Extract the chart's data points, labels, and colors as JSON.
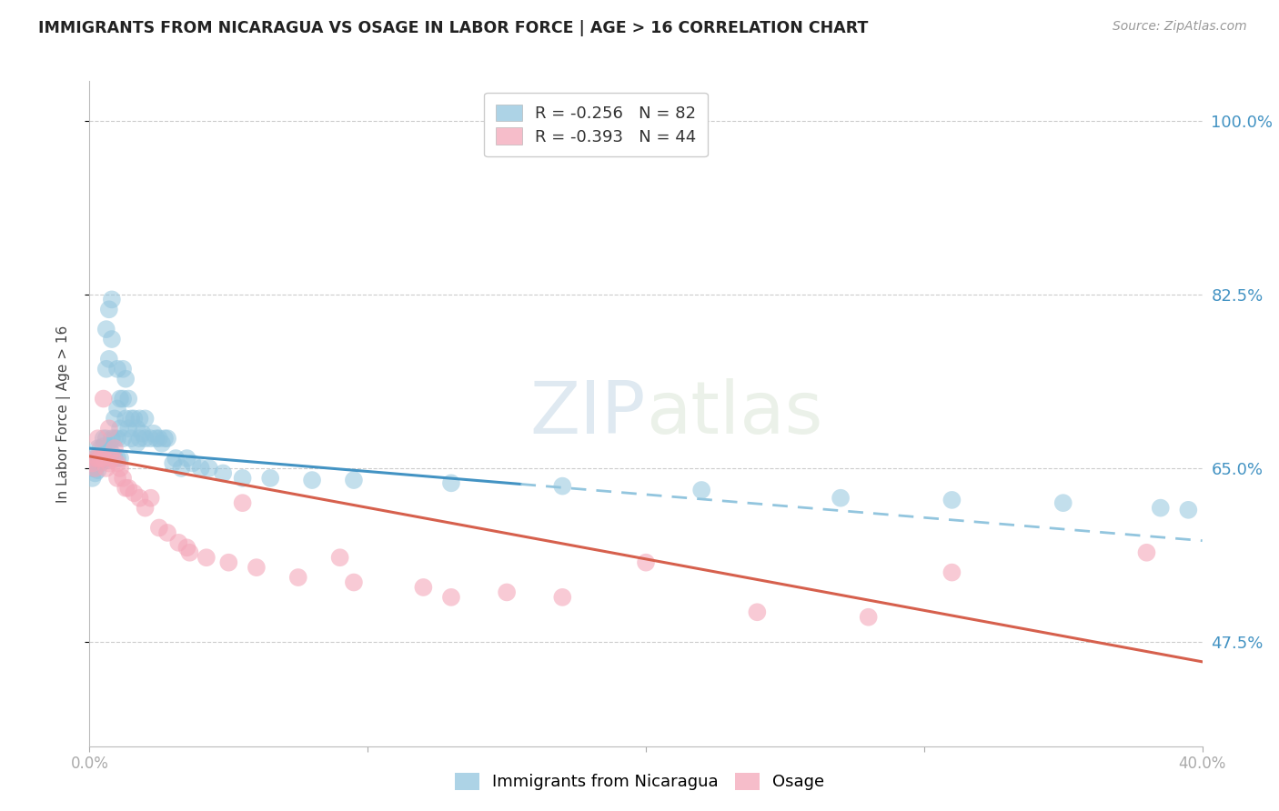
{
  "title": "IMMIGRANTS FROM NICARAGUA VS OSAGE IN LABOR FORCE | AGE > 16 CORRELATION CHART",
  "source": "Source: ZipAtlas.com",
  "ylabel": "In Labor Force | Age > 16",
  "ytick_labels": [
    "100.0%",
    "82.5%",
    "65.0%",
    "47.5%"
  ],
  "ytick_values": [
    1.0,
    0.825,
    0.65,
    0.475
  ],
  "xmin": 0.0,
  "xmax": 0.4,
  "ymin": 0.37,
  "ymax": 1.04,
  "watermark_zip": "ZIP",
  "watermark_atlas": "atlas",
  "series1_color": "#92c5de",
  "series2_color": "#f4a7b9",
  "trend1_solid_color": "#4393c3",
  "trend1_dash_color": "#92c5de",
  "trend2_color": "#d6604d",
  "background": "#ffffff",
  "grid_color": "#cccccc",
  "right_label_color": "#4393c3",
  "legend_label1": "R = -0.256   N = 82",
  "legend_label2": "R = -0.393   N = 44",
  "legend_color1": "#92c5de",
  "legend_color2": "#f4a7b9",
  "scatter1_x": [
    0.001,
    0.001,
    0.002,
    0.002,
    0.002,
    0.003,
    0.003,
    0.003,
    0.003,
    0.004,
    0.004,
    0.004,
    0.005,
    0.005,
    0.005,
    0.005,
    0.006,
    0.006,
    0.006,
    0.006,
    0.007,
    0.007,
    0.007,
    0.007,
    0.008,
    0.008,
    0.008,
    0.008,
    0.009,
    0.009,
    0.009,
    0.01,
    0.01,
    0.01,
    0.01,
    0.011,
    0.011,
    0.011,
    0.012,
    0.012,
    0.012,
    0.013,
    0.013,
    0.014,
    0.014,
    0.015,
    0.015,
    0.016,
    0.017,
    0.017,
    0.018,
    0.018,
    0.019,
    0.02,
    0.02,
    0.022,
    0.023,
    0.024,
    0.025,
    0.026,
    0.027,
    0.028,
    0.03,
    0.031,
    0.033,
    0.035,
    0.037,
    0.04,
    0.043,
    0.048,
    0.055,
    0.065,
    0.08,
    0.095,
    0.13,
    0.17,
    0.22,
    0.27,
    0.31,
    0.35,
    0.385,
    0.395
  ],
  "scatter1_y": [
    0.65,
    0.64,
    0.66,
    0.65,
    0.645,
    0.67,
    0.655,
    0.66,
    0.648,
    0.66,
    0.67,
    0.655,
    0.68,
    0.665,
    0.658,
    0.672,
    0.79,
    0.75,
    0.68,
    0.67,
    0.81,
    0.76,
    0.67,
    0.658,
    0.82,
    0.78,
    0.68,
    0.665,
    0.7,
    0.68,
    0.66,
    0.75,
    0.71,
    0.68,
    0.66,
    0.72,
    0.69,
    0.66,
    0.75,
    0.72,
    0.68,
    0.74,
    0.7,
    0.72,
    0.69,
    0.7,
    0.68,
    0.7,
    0.69,
    0.675,
    0.7,
    0.68,
    0.685,
    0.7,
    0.68,
    0.68,
    0.685,
    0.68,
    0.68,
    0.675,
    0.68,
    0.68,
    0.655,
    0.66,
    0.65,
    0.66,
    0.655,
    0.65,
    0.65,
    0.645,
    0.64,
    0.64,
    0.638,
    0.638,
    0.635,
    0.632,
    0.628,
    0.62,
    0.618,
    0.615,
    0.61,
    0.608
  ],
  "scatter2_x": [
    0.001,
    0.002,
    0.002,
    0.003,
    0.003,
    0.004,
    0.005,
    0.005,
    0.006,
    0.007,
    0.007,
    0.008,
    0.009,
    0.01,
    0.01,
    0.011,
    0.012,
    0.013,
    0.014,
    0.016,
    0.018,
    0.02,
    0.022,
    0.025,
    0.028,
    0.032,
    0.036,
    0.042,
    0.05,
    0.06,
    0.075,
    0.095,
    0.12,
    0.15,
    0.17,
    0.2,
    0.24,
    0.28,
    0.31,
    0.38,
    0.13,
    0.09,
    0.055,
    0.035
  ],
  "scatter2_y": [
    0.655,
    0.66,
    0.65,
    0.68,
    0.66,
    0.66,
    0.72,
    0.66,
    0.65,
    0.69,
    0.655,
    0.66,
    0.67,
    0.655,
    0.64,
    0.65,
    0.64,
    0.63,
    0.63,
    0.625,
    0.62,
    0.61,
    0.62,
    0.59,
    0.585,
    0.575,
    0.565,
    0.56,
    0.555,
    0.55,
    0.54,
    0.535,
    0.53,
    0.525,
    0.52,
    0.555,
    0.505,
    0.5,
    0.545,
    0.565,
    0.52,
    0.56,
    0.615,
    0.57
  ],
  "trend1_x0": 0.0,
  "trend1_x1": 0.4,
  "trend1_y0": 0.67,
  "trend1_y1": 0.577,
  "trend1_solid_xend": 0.155,
  "trend2_x0": 0.0,
  "trend2_x1": 0.4,
  "trend2_y0": 0.662,
  "trend2_y1": 0.455
}
